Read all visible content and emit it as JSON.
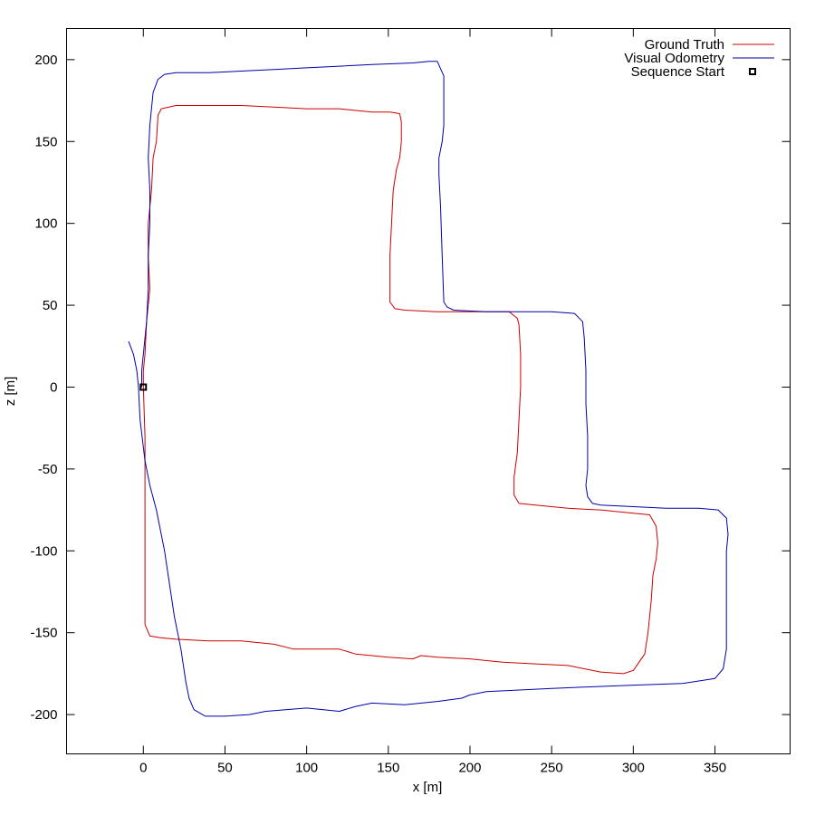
{
  "chart_data": {
    "type": "line",
    "title": "",
    "xlabel": "x [m]",
    "ylabel": "z [m]",
    "xlim": [
      -47,
      396
    ],
    "ylim": [
      -224,
      219
    ],
    "x_ticks": [
      0,
      50,
      100,
      150,
      200,
      250,
      300,
      350
    ],
    "y_ticks": [
      200,
      150,
      100,
      50,
      0,
      -50,
      -100,
      -150,
      -200
    ],
    "x_tick_labels": [
      "0",
      "50",
      "100",
      "150",
      "200",
      "250",
      "300",
      "350"
    ],
    "y_tick_labels": [
      "200",
      "150",
      "100",
      "50",
      "0",
      "-50",
      "-100",
      "-150",
      "-200"
    ],
    "grid": false,
    "legend_position": "top-right",
    "series": [
      {
        "name": "Ground Truth",
        "color": "#cc0000",
        "points": [
          [
            0,
            0
          ],
          [
            1,
            -30
          ],
          [
            1,
            -60
          ],
          [
            1,
            -100
          ],
          [
            1,
            -145
          ],
          [
            4,
            -152
          ],
          [
            10,
            -153
          ],
          [
            20,
            -154
          ],
          [
            40,
            -155
          ],
          [
            60,
            -155
          ],
          [
            80,
            -157
          ],
          [
            92,
            -160
          ],
          [
            110,
            -160
          ],
          [
            120,
            -160
          ],
          [
            130,
            -163
          ],
          [
            150,
            -165
          ],
          [
            165,
            -166
          ],
          [
            170,
            -164
          ],
          [
            180,
            -165
          ],
          [
            200,
            -166
          ],
          [
            220,
            -168
          ],
          [
            240,
            -169
          ],
          [
            260,
            -170
          ],
          [
            280,
            -174
          ],
          [
            294,
            -175
          ],
          [
            300,
            -173
          ],
          [
            307,
            -163
          ],
          [
            309,
            -150
          ],
          [
            311,
            -130
          ],
          [
            312,
            -115
          ],
          [
            314,
            -105
          ],
          [
            315,
            -95
          ],
          [
            314,
            -85
          ],
          [
            310,
            -78
          ],
          [
            300,
            -77
          ],
          [
            280,
            -75
          ],
          [
            260,
            -74
          ],
          [
            240,
            -72
          ],
          [
            230,
            -71
          ],
          [
            227,
            -66
          ],
          [
            227,
            -55
          ],
          [
            229,
            -40
          ],
          [
            230,
            -20
          ],
          [
            231,
            0
          ],
          [
            231,
            20
          ],
          [
            230,
            38
          ],
          [
            229,
            42
          ],
          [
            224,
            46
          ],
          [
            220,
            46
          ],
          [
            200,
            46
          ],
          [
            180,
            46
          ],
          [
            160,
            47
          ],
          [
            154,
            48
          ],
          [
            151,
            52
          ],
          [
            151,
            80
          ],
          [
            152,
            100
          ],
          [
            153,
            120
          ],
          [
            155,
            133
          ],
          [
            157,
            140
          ],
          [
            158,
            150
          ],
          [
            158,
            162
          ],
          [
            157,
            167
          ],
          [
            151,
            168
          ],
          [
            140,
            168
          ],
          [
            120,
            170
          ],
          [
            100,
            170
          ],
          [
            80,
            171
          ],
          [
            60,
            172
          ],
          [
            40,
            172
          ],
          [
            24,
            172
          ],
          [
            20,
            172
          ],
          [
            11,
            170
          ],
          [
            9,
            166
          ],
          [
            8,
            150
          ],
          [
            6,
            140
          ],
          [
            5,
            120
          ],
          [
            3,
            100
          ],
          [
            3,
            80
          ],
          [
            4,
            60
          ],
          [
            3,
            50
          ],
          [
            2,
            40
          ],
          [
            1,
            20
          ],
          [
            0,
            10
          ],
          [
            0,
            0
          ]
        ]
      },
      {
        "name": "Visual Odometry",
        "color": "#0000aa",
        "points": [
          [
            -9,
            28
          ],
          [
            -6,
            20
          ],
          [
            -4,
            10
          ],
          [
            -3,
            0
          ],
          [
            -2,
            -20
          ],
          [
            1,
            -45
          ],
          [
            4,
            -60
          ],
          [
            8,
            -75
          ],
          [
            13,
            -100
          ],
          [
            16,
            -120
          ],
          [
            19,
            -140
          ],
          [
            23,
            -160
          ],
          [
            26,
            -180
          ],
          [
            28,
            -190
          ],
          [
            31,
            -197
          ],
          [
            38,
            -201
          ],
          [
            50,
            -201
          ],
          [
            65,
            -200
          ],
          [
            75,
            -198
          ],
          [
            100,
            -196
          ],
          [
            120,
            -198
          ],
          [
            130,
            -195
          ],
          [
            140,
            -193
          ],
          [
            160,
            -194
          ],
          [
            180,
            -192
          ],
          [
            195,
            -190
          ],
          [
            200,
            -188
          ],
          [
            210,
            -186
          ],
          [
            250,
            -184
          ],
          [
            300,
            -182
          ],
          [
            330,
            -181
          ],
          [
            350,
            -178
          ],
          [
            355,
            -172
          ],
          [
            357,
            -160
          ],
          [
            357,
            -140
          ],
          [
            357,
            -120
          ],
          [
            357,
            -100
          ],
          [
            358,
            -90
          ],
          [
            357,
            -80
          ],
          [
            352,
            -75
          ],
          [
            340,
            -74
          ],
          [
            320,
            -74
          ],
          [
            300,
            -73
          ],
          [
            280,
            -72
          ],
          [
            275,
            -71
          ],
          [
            272,
            -67
          ],
          [
            271,
            -60
          ],
          [
            272,
            -50
          ],
          [
            272,
            -30
          ],
          [
            271,
            -10
          ],
          [
            271,
            10
          ],
          [
            270,
            30
          ],
          [
            269,
            40
          ],
          [
            264,
            45
          ],
          [
            250,
            46
          ],
          [
            230,
            46
          ],
          [
            210,
            46
          ],
          [
            190,
            47
          ],
          [
            186,
            49
          ],
          [
            184,
            52
          ],
          [
            183,
            80
          ],
          [
            182,
            110
          ],
          [
            181,
            130
          ],
          [
            181,
            140
          ],
          [
            183,
            150
          ],
          [
            184,
            160
          ],
          [
            184,
            180
          ],
          [
            184,
            190
          ],
          [
            180,
            199
          ],
          [
            175,
            199
          ],
          [
            165,
            198
          ],
          [
            140,
            197
          ],
          [
            120,
            196
          ],
          [
            100,
            195
          ],
          [
            80,
            194
          ],
          [
            60,
            193
          ],
          [
            40,
            192
          ],
          [
            20,
            192
          ],
          [
            13,
            191
          ],
          [
            9,
            188
          ],
          [
            6,
            180
          ],
          [
            4,
            160
          ],
          [
            3,
            140
          ],
          [
            4,
            120
          ],
          [
            4,
            100
          ],
          [
            3,
            80
          ],
          [
            3,
            60
          ],
          [
            2,
            40
          ],
          [
            0,
            20
          ],
          [
            -1,
            10
          ],
          [
            -1,
            0
          ]
        ]
      }
    ],
    "markers": [
      {
        "name": "Sequence Start",
        "x": 0,
        "y": 0,
        "shape": "open-square",
        "color": "#000000"
      }
    ]
  }
}
